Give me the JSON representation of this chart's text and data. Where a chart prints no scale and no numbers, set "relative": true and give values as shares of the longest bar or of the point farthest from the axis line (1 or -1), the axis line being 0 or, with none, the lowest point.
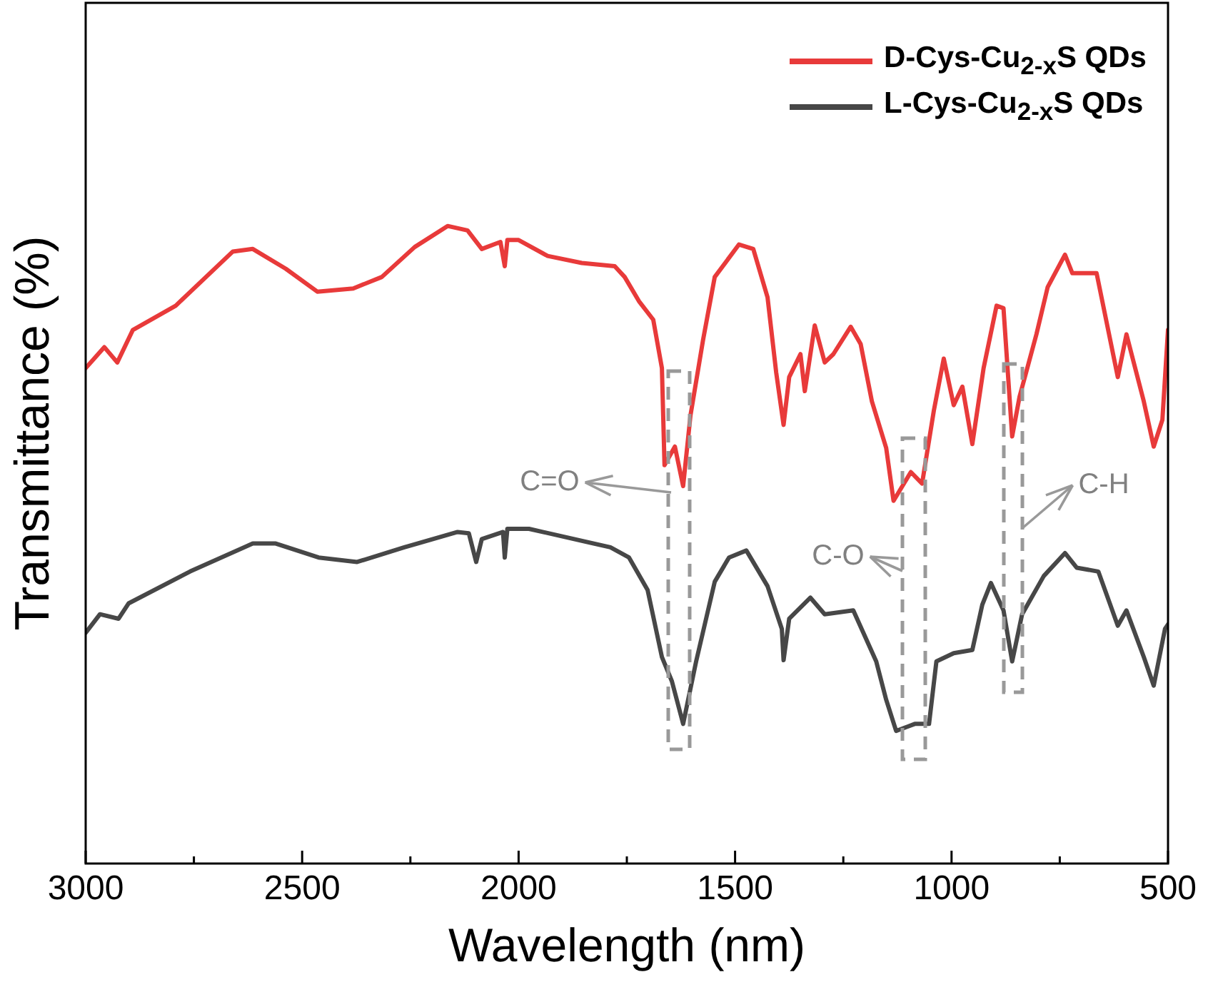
{
  "chart_data": {
    "type": "line",
    "xlabel": "Wavelength (nm)",
    "ylabel": "Transmittance (%)",
    "relative": true,
    "legend": "top right",
    "grid": false,
    "marker": "none",
    "line_style": "solid",
    "xlim": [
      3000,
      500
    ],
    "xticks": [
      3000,
      {
        "value": 2750,
        "label": null
      },
      2500,
      {
        "value": 2250,
        "label": null
      },
      2000,
      {
        "value": 1750,
        "label": null
      },
      1500,
      {
        "value": 1250,
        "label": null
      },
      1000,
      {
        "value": 750,
        "label": null
      },
      500
    ],
    "series": [
      {
        "name": "D-Cys-Cu$_{2-x}$S QDs",
        "color": "#e83a3a",
        "x": [
          3000,
          2957,
          2927,
          2891,
          2792,
          2660,
          2614,
          2538,
          2465,
          2382,
          2316,
          2240,
          2164,
          2118,
          2085,
          2042,
          2032,
          2026,
          2000,
          1933,
          1854,
          1778,
          1755,
          1722,
          1689,
          1669,
          1663,
          1639,
          1620,
          1603,
          1574,
          1547,
          1491,
          1458,
          1425,
          1405,
          1388,
          1375,
          1349,
          1339,
          1316,
          1293,
          1273,
          1233,
          1210,
          1184,
          1151,
          1134,
          1094,
          1068,
          1041,
          1018,
          995,
          975,
          952,
          926,
          896,
          880,
          860,
          843,
          804,
          778,
          738,
          721,
          665,
          616,
          596,
          556,
          533,
          513,
          500
        ],
        "values": [
          0.777,
          0.81,
          0.786,
          0.837,
          0.875,
          0.96,
          0.964,
          0.933,
          0.897,
          0.902,
          0.92,
          0.967,
          1,
          0.993,
          0.964,
          0.975,
          0.937,
          0.978,
          0.978,
          0.953,
          0.942,
          0.937,
          0.92,
          0.882,
          0.853,
          0.777,
          0.625,
          0.654,
          0.592,
          0.703,
          0.821,
          0.92,
          0.971,
          0.964,
          0.888,
          0.77,
          0.688,
          0.763,
          0.799,
          0.741,
          0.844,
          0.786,
          0.799,
          0.842,
          0.815,
          0.725,
          0.652,
          0.569,
          0.614,
          0.596,
          0.71,
          0.792,
          0.719,
          0.748,
          0.658,
          0.777,
          0.875,
          0.871,
          0.67,
          0.732,
          0.83,
          0.904,
          0.955,
          0.926,
          0.926,
          0.763,
          0.83,
          0.725,
          0.654,
          0.696,
          0.837
        ]
      },
      {
        "name": "L-Cys-Cu$_{2-x}$S QDs",
        "color": "#474747",
        "x": [
          3000,
          2967,
          2924,
          2901,
          2759,
          2614,
          2561,
          2462,
          2373,
          2264,
          2141,
          2115,
          2098,
          2085,
          2036,
          2032,
          2026,
          1976,
          1788,
          1745,
          1702,
          1669,
          1646,
          1620,
          1590,
          1547,
          1514,
          1474,
          1425,
          1392,
          1388,
          1375,
          1326,
          1293,
          1227,
          1174,
          1151,
          1128,
          1085,
          1052,
          1035,
          995,
          952,
          929,
          909,
          880,
          860,
          837,
          787,
          738,
          711,
          661,
          616,
          596,
          556,
          533,
          507,
          500
        ],
        "values": [
          0.362,
          0.391,
          0.384,
          0.408,
          0.458,
          0.502,
          0.502,
          0.48,
          0.473,
          0.496,
          0.52,
          0.518,
          0.473,
          0.509,
          0.52,
          0.48,
          0.525,
          0.525,
          0.496,
          0.48,
          0.429,
          0.324,
          0.286,
          0.219,
          0.317,
          0.442,
          0.48,
          0.491,
          0.435,
          0.368,
          0.319,
          0.384,
          0.417,
          0.391,
          0.397,
          0.317,
          0.257,
          0.208,
          0.219,
          0.219,
          0.317,
          0.33,
          0.335,
          0.406,
          0.44,
          0.397,
          0.317,
          0.391,
          0.451,
          0.487,
          0.464,
          0.458,
          0.373,
          0.397,
          0.324,
          0.279,
          0.368,
          0.375
        ]
      }
    ],
    "annotations": [
      "C=O",
      "C-O",
      "C-H"
    ]
  }
}
